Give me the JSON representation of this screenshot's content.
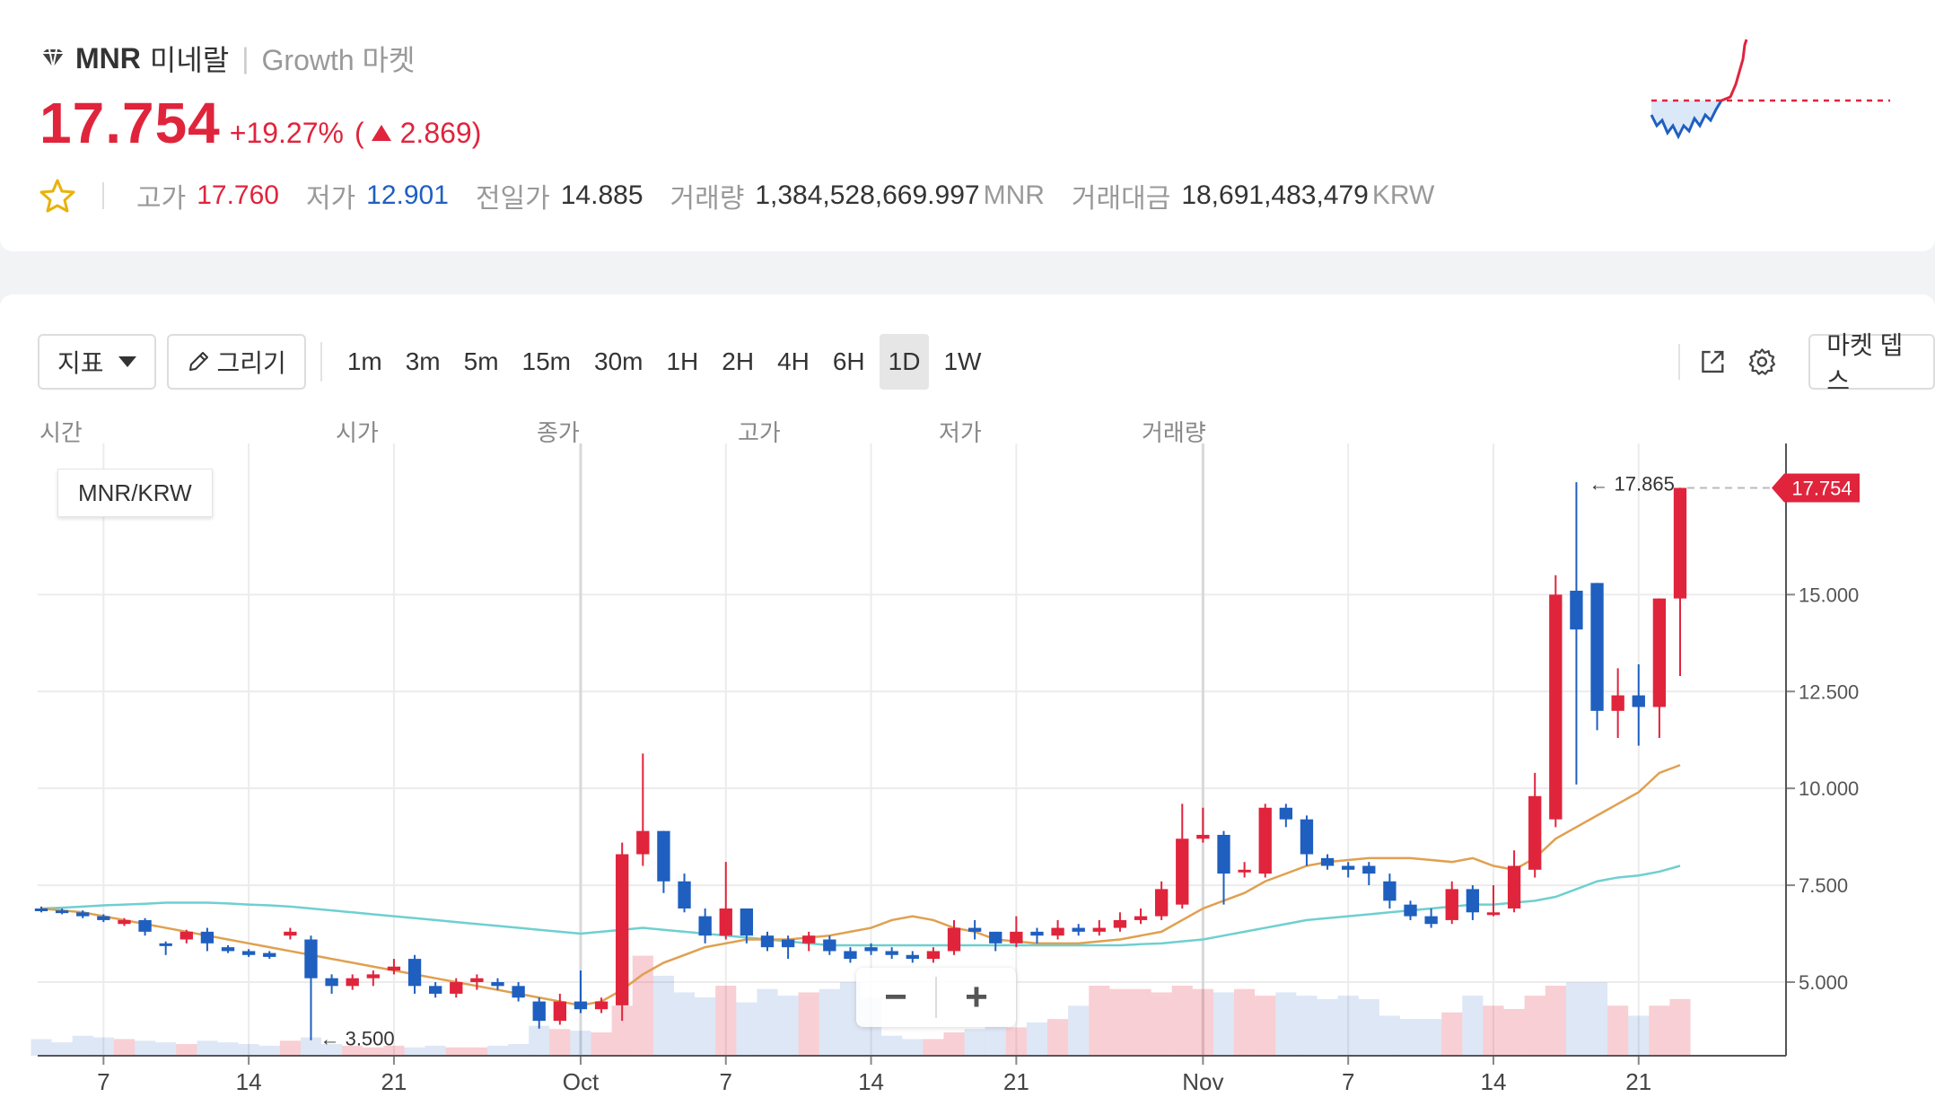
{
  "header": {
    "symbol": "MNR",
    "name": "미네랄",
    "market": "Growth 마켓",
    "price": "17.754",
    "change_pct": "+19.27%",
    "change_open": "(",
    "change_abs": "2.869)",
    "high_label": "고가",
    "high": "17.760",
    "low_label": "저가",
    "low": "12.901",
    "prev_label": "전일가",
    "prev": "14.885",
    "volume_label": "거래량",
    "volume": "1,384,528,669.997",
    "volume_unit": "MNR",
    "amount_label": "거래대금",
    "amount": "18,691,483,479",
    "amount_unit": "KRW",
    "colors": {
      "up": "#e0243c",
      "down": "#1f5fbf"
    }
  },
  "toolbar": {
    "indicator_label": "지표",
    "draw_label": "그리기",
    "intervals": [
      "1m",
      "3m",
      "5m",
      "15m",
      "30m",
      "1H",
      "2H",
      "4H",
      "6H",
      "1D",
      "1W"
    ],
    "active_interval": "1D",
    "depth_label": "마켓 뎁스",
    "icons": [
      "external-link-icon",
      "gear-icon"
    ]
  },
  "ohlc_labels": {
    "time": "시간",
    "open": "시가",
    "close": "종가",
    "high": "고가",
    "low": "저가",
    "volume": "거래량"
  },
  "pair_label": "MNR/KRW",
  "zoom": {
    "minus": "−",
    "plus": "+"
  },
  "chart_data": {
    "type": "candlestick",
    "y_ticks": [
      "15.000",
      "12.500",
      "10.000",
      "7.500",
      "5.000"
    ],
    "x_ticks": [
      "7",
      "14",
      "21",
      "Oct",
      "7",
      "14",
      "21",
      "Nov",
      "7",
      "14",
      "21"
    ],
    "last_price_label": "17.754",
    "max_label": "← 17.865",
    "min_label": "← 3.500",
    "candles": [
      [
        6.9,
        6.85,
        6.95,
        6.8
      ],
      [
        6.85,
        6.8,
        6.9,
        6.75
      ],
      [
        6.8,
        6.7,
        6.85,
        6.65
      ],
      [
        6.7,
        6.6,
        6.75,
        6.55
      ],
      [
        6.5,
        6.6,
        6.65,
        6.45
      ],
      [
        6.6,
        6.3,
        6.65,
        6.2
      ],
      [
        6.0,
        5.95,
        6.05,
        5.7
      ],
      [
        6.1,
        6.3,
        6.35,
        6.0
      ],
      [
        6.3,
        6.0,
        6.4,
        5.8
      ],
      [
        5.9,
        5.8,
        5.95,
        5.75
      ],
      [
        5.8,
        5.7,
        5.85,
        5.65
      ],
      [
        5.75,
        5.65,
        5.8,
        5.6
      ],
      [
        6.2,
        6.3,
        6.4,
        6.1
      ],
      [
        6.1,
        5.1,
        6.2,
        3.5
      ],
      [
        5.1,
        4.9,
        5.2,
        4.7
      ],
      [
        4.9,
        5.1,
        5.2,
        4.8
      ],
      [
        5.1,
        5.2,
        5.3,
        4.9
      ],
      [
        5.3,
        5.4,
        5.6,
        5.2
      ],
      [
        5.6,
        4.9,
        5.7,
        4.7
      ],
      [
        4.9,
        4.7,
        5.0,
        4.6
      ],
      [
        4.7,
        5.0,
        5.1,
        4.6
      ],
      [
        5.0,
        5.1,
        5.2,
        4.8
      ],
      [
        5.0,
        4.9,
        5.1,
        4.8
      ],
      [
        4.9,
        4.6,
        5.0,
        4.5
      ],
      [
        4.5,
        4.0,
        4.6,
        3.8
      ],
      [
        4.0,
        4.5,
        4.7,
        3.9
      ],
      [
        4.5,
        4.3,
        5.3,
        4.2
      ],
      [
        4.3,
        4.5,
        4.6,
        4.2
      ],
      [
        4.4,
        8.3,
        8.6,
        4.0
      ],
      [
        8.3,
        8.9,
        10.9,
        8.0
      ],
      [
        8.9,
        7.6,
        8.9,
        7.3
      ],
      [
        7.6,
        6.9,
        7.8,
        6.8
      ],
      [
        6.7,
        6.2,
        6.9,
        6.0
      ],
      [
        6.2,
        6.9,
        8.1,
        6.1
      ],
      [
        6.9,
        6.2,
        6.9,
        6.0
      ],
      [
        6.2,
        5.9,
        6.3,
        5.8
      ],
      [
        6.1,
        5.9,
        6.2,
        5.6
      ],
      [
        6.0,
        6.2,
        6.3,
        5.8
      ],
      [
        6.1,
        5.8,
        6.2,
        5.7
      ],
      [
        5.8,
        5.6,
        5.9,
        5.5
      ],
      [
        5.9,
        5.8,
        6.0,
        5.7
      ],
      [
        5.8,
        5.7,
        5.9,
        5.6
      ],
      [
        5.7,
        5.6,
        5.8,
        5.5
      ],
      [
        5.6,
        5.8,
        5.9,
        5.5
      ],
      [
        5.8,
        6.4,
        6.6,
        5.7
      ],
      [
        6.4,
        6.3,
        6.6,
        6.1
      ],
      [
        6.3,
        6.0,
        6.3,
        5.8
      ],
      [
        6.0,
        6.3,
        6.7,
        5.9
      ],
      [
        6.3,
        6.2,
        6.4,
        6.0
      ],
      [
        6.2,
        6.4,
        6.6,
        6.1
      ],
      [
        6.4,
        6.3,
        6.5,
        6.2
      ],
      [
        6.3,
        6.4,
        6.6,
        6.2
      ],
      [
        6.4,
        6.6,
        6.8,
        6.3
      ],
      [
        6.6,
        6.7,
        6.9,
        6.5
      ],
      [
        6.7,
        7.4,
        7.6,
        6.6
      ],
      [
        7.0,
        8.7,
        9.6,
        6.9
      ],
      [
        8.7,
        8.8,
        9.5,
        8.6
      ],
      [
        8.8,
        7.8,
        8.9,
        7.0
      ],
      [
        7.9,
        7.9,
        8.1,
        7.7
      ],
      [
        7.8,
        9.5,
        9.6,
        7.7
      ],
      [
        9.5,
        9.2,
        9.6,
        9.0
      ],
      [
        9.2,
        8.3,
        9.3,
        8.0
      ],
      [
        8.2,
        8.0,
        8.3,
        7.9
      ],
      [
        8.0,
        7.9,
        8.1,
        7.7
      ],
      [
        8.0,
        7.8,
        8.1,
        7.5
      ],
      [
        7.6,
        7.1,
        7.8,
        6.9
      ],
      [
        7.0,
        6.7,
        7.1,
        6.6
      ],
      [
        6.7,
        6.5,
        6.9,
        6.4
      ],
      [
        6.6,
        7.4,
        7.6,
        6.5
      ],
      [
        7.4,
        6.8,
        7.5,
        6.6
      ],
      [
        6.8,
        6.8,
        7.5,
        6.7
      ],
      [
        6.9,
        8.0,
        8.4,
        6.8
      ],
      [
        7.9,
        9.8,
        10.4,
        7.7
      ],
      [
        9.2,
        15.0,
        15.5,
        9.0
      ],
      [
        15.1,
        14.1,
        17.9,
        10.1
      ],
      [
        15.3,
        12.0,
        15.3,
        11.5
      ],
      [
        12.0,
        12.4,
        13.1,
        11.3
      ],
      [
        12.4,
        12.1,
        13.2,
        11.1
      ],
      [
        12.1,
        14.9,
        14.9,
        11.3
      ],
      [
        14.9,
        17.754,
        17.76,
        12.9
      ]
    ],
    "ma_fast": [
      6.9,
      6.85,
      6.8,
      6.7,
      6.6,
      6.5,
      6.4,
      6.3,
      6.2,
      6.1,
      6.0,
      5.9,
      5.8,
      5.7,
      5.6,
      5.5,
      5.4,
      5.3,
      5.2,
      5.1,
      5.0,
      4.9,
      4.8,
      4.7,
      4.6,
      4.5,
      4.4,
      4.5,
      4.8,
      5.2,
      5.5,
      5.7,
      5.9,
      6.0,
      6.1,
      6.1,
      6.1,
      6.15,
      6.2,
      6.3,
      6.4,
      6.6,
      6.7,
      6.6,
      6.4,
      6.3,
      6.1,
      6.05,
      6.0,
      6.0,
      6.0,
      6.05,
      6.1,
      6.2,
      6.3,
      6.6,
      6.9,
      7.1,
      7.3,
      7.6,
      7.8,
      8.0,
      8.1,
      8.15,
      8.2,
      8.2,
      8.2,
      8.15,
      8.1,
      8.2,
      8.0,
      7.9,
      8.2,
      8.7,
      9.0,
      9.3,
      9.6,
      9.9,
      10.4,
      10.6
    ],
    "ma_slow": [
      6.9,
      6.92,
      6.95,
      6.98,
      7.0,
      7.02,
      7.05,
      7.05,
      7.05,
      7.03,
      7.0,
      6.98,
      6.95,
      6.9,
      6.85,
      6.8,
      6.75,
      6.7,
      6.65,
      6.6,
      6.55,
      6.5,
      6.45,
      6.4,
      6.35,
      6.3,
      6.25,
      6.3,
      6.35,
      6.4,
      6.35,
      6.3,
      6.25,
      6.2,
      6.15,
      6.1,
      6.05,
      6.0,
      5.95,
      5.95,
      5.95,
      5.95,
      5.95,
      5.95,
      5.95,
      5.95,
      5.95,
      5.95,
      5.95,
      5.95,
      5.95,
      5.95,
      5.95,
      5.98,
      6.0,
      6.05,
      6.1,
      6.2,
      6.3,
      6.4,
      6.5,
      6.6,
      6.65,
      6.7,
      6.75,
      6.8,
      6.85,
      6.9,
      6.95,
      7.0,
      7.0,
      7.05,
      7.1,
      7.2,
      7.4,
      7.6,
      7.7,
      7.75,
      7.85,
      8.0
    ],
    "volumes": [
      10,
      8,
      12,
      11,
      10,
      9,
      8,
      7,
      9,
      8,
      7,
      6,
      9,
      11,
      7,
      6,
      5,
      6,
      5,
      6,
      5,
      5,
      6,
      7,
      18,
      16,
      15,
      14,
      30,
      60,
      48,
      38,
      35,
      42,
      32,
      40,
      36,
      38,
      40,
      44,
      35,
      12,
      10,
      10,
      14,
      16,
      18,
      17,
      20,
      22,
      30,
      42,
      40,
      40,
      38,
      42,
      40,
      38,
      40,
      36,
      38,
      36,
      34,
      36,
      34,
      24,
      22,
      22,
      26,
      36,
      30,
      28,
      36,
      42,
      44,
      44,
      30,
      24,
      30,
      34
    ]
  }
}
